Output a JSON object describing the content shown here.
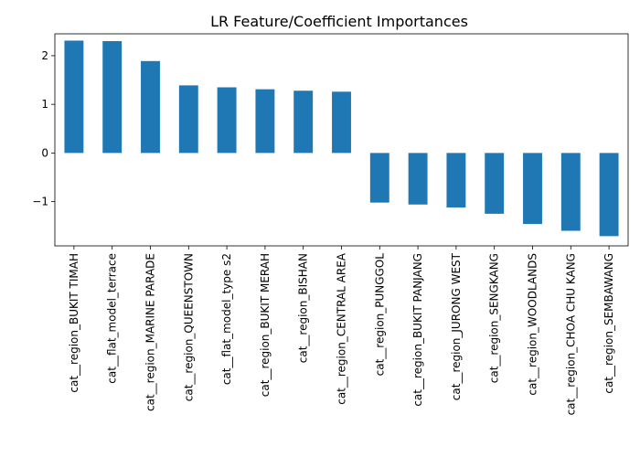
{
  "chart_data": {
    "type": "bar",
    "title": "LR Feature/Coefficient Importances",
    "xlabel": "",
    "ylabel": "",
    "categories": [
      "cat__region_BUKIT TIMAH",
      "cat__flat_model_terrace",
      "cat__region_MARINE PARADE",
      "cat__region_QUEENSTOWN",
      "cat__flat_model_type s2",
      "cat__region_BUKIT MERAH",
      "cat__region_BISHAN",
      "cat__region_CENTRAL AREA",
      "cat__region_PUNGGOL",
      "cat__region_BUKIT PANJANG",
      "cat__region_JURONG WEST",
      "cat__region_SENGKANG",
      "cat__region_WOODLANDS",
      "cat__region_CHOA CHU KANG",
      "cat__region_SEMBAWANG"
    ],
    "values": [
      2.31,
      2.3,
      1.89,
      1.39,
      1.35,
      1.31,
      1.28,
      1.26,
      -1.02,
      -1.06,
      -1.12,
      -1.25,
      -1.46,
      -1.6,
      -1.71
    ],
    "ylim": [
      -1.91,
      2.45
    ],
    "yticks": [
      -1,
      0,
      1,
      2
    ],
    "ytick_labels": [
      "−1",
      "0",
      "1",
      "2"
    ],
    "bar_color": "#1f77b4",
    "grid": false,
    "legend": "none"
  }
}
